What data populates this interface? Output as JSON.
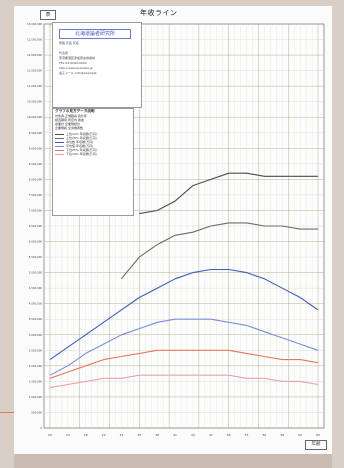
{
  "sheet": {
    "title": "年收ライン",
    "corner_label": "表",
    "footer_label": "年齢"
  },
  "logo": {
    "title": "北海道論者研究所",
    "lines": [
      "所長 氏名 氏名",
      "代表者",
      "東京都港区赤坂所在地番地",
      "TEL 03-0000-0000",
      "http://www.example.jp",
      "電子メール info@example"
    ]
  },
  "legend": {
    "title": "グラフの見方データ説明",
    "info_lines": [
      "対象者 正規職員 統計年",
      "調査期間 所定内 賃金",
      "産業計 企業規模計",
      "企業規模 全労働者数"
    ],
    "series": [
      {
        "label": "上位10% 年収額(万円)",
        "color": "#4c4c4c"
      },
      {
        "label": "上位25% 年収額(万円)",
        "color": "#6b6b6b"
      },
      {
        "label": "中位数 年収額(万円)",
        "color": "#3f5fb8"
      },
      {
        "label": "平均値 年収額(万円)",
        "color": "#7b8fd6"
      },
      {
        "label": "下位25% 年収額(万円)",
        "color": "#e07a5f"
      },
      {
        "label": "下位10% 年収額(万円)",
        "color": "#e8a0b0"
      }
    ]
  },
  "chart_data": {
    "type": "line",
    "title": "年収ライン",
    "xlabel": "",
    "ylabel": "",
    "x": [
      20,
      23,
      26,
      29,
      32,
      35,
      38,
      41,
      44,
      47,
      50,
      53,
      56,
      59,
      62,
      65
    ],
    "xlim": [
      19,
      66
    ],
    "ylim": [
      0,
      13000000
    ],
    "ytick_step": 500000,
    "grid": true,
    "series": [
      {
        "name": "上位10%",
        "color": "#4c4c4c",
        "values": [
          null,
          null,
          null,
          null,
          null,
          6900000,
          7000000,
          7300000,
          7800000,
          8000000,
          8200000,
          8200000,
          8100000,
          8100000,
          8100000,
          8100000
        ]
      },
      {
        "name": "上位25%",
        "color": "#6b6b6b",
        "values": [
          null,
          null,
          null,
          null,
          4800000,
          5500000,
          5900000,
          6200000,
          6300000,
          6500000,
          6600000,
          6600000,
          6500000,
          6500000,
          6400000,
          6400000
        ]
      },
      {
        "name": "中位数",
        "color": "#3f5fb8",
        "values": [
          2200000,
          2600000,
          3000000,
          3400000,
          3800000,
          4200000,
          4500000,
          4800000,
          5000000,
          5100000,
          5100000,
          5000000,
          4800000,
          4500000,
          4200000,
          3800000
        ]
      },
      {
        "name": "平均値",
        "color": "#7b8fd6",
        "values": [
          1700000,
          2000000,
          2400000,
          2700000,
          3000000,
          3200000,
          3400000,
          3500000,
          3500000,
          3500000,
          3400000,
          3300000,
          3100000,
          2900000,
          2700000,
          2500000
        ]
      },
      {
        "name": "下位25%",
        "color": "#e07a5f",
        "values": [
          1600000,
          1800000,
          2000000,
          2200000,
          2300000,
          2400000,
          2500000,
          2500000,
          2500000,
          2500000,
          2500000,
          2400000,
          2300000,
          2200000,
          2200000,
          2100000
        ]
      },
      {
        "name": "下位10%",
        "color": "#e8a0b0",
        "values": [
          1300000,
          1400000,
          1500000,
          1600000,
          1600000,
          1700000,
          1700000,
          1700000,
          1700000,
          1700000,
          1700000,
          1600000,
          1600000,
          1500000,
          1500000,
          1400000
        ]
      }
    ]
  }
}
